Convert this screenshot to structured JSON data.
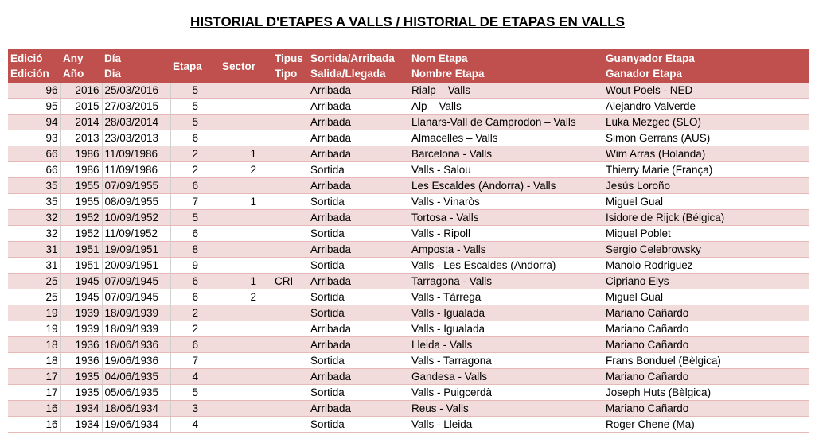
{
  "title": "HISTORIAL D'ETAPES A VALLS / HISTORIAL DE ETAPAS EN VALLS",
  "headers": {
    "edicio": [
      "Edició",
      "Edición"
    ],
    "any": [
      "Any",
      "Año"
    ],
    "dia": [
      "Día",
      "Dia"
    ],
    "etapa": "Etapa",
    "sector": "Sector",
    "tipus": [
      "Tipus",
      "Tipo"
    ],
    "sortida": [
      "Sortida/Arribada",
      "Salida/Llegada"
    ],
    "nom": [
      "Nom Etapa",
      "Nombre Etapa"
    ],
    "guanyador": [
      "Guanyador Etapa",
      "Ganador Etapa"
    ]
  },
  "colors": {
    "header": "#c0504d",
    "band": "#f2dcdb"
  },
  "rows": [
    [
      "96",
      "2016",
      "25/03/2016",
      "5",
      "",
      "",
      "Arribada",
      "Rialp – Valls",
      "Wout Poels - NED"
    ],
    [
      "95",
      "2015",
      "27/03/2015",
      "5",
      "",
      "",
      "Arribada",
      "Alp – Valls",
      "Alejandro Valverde"
    ],
    [
      "94",
      "2014",
      "28/03/2014",
      "5",
      "",
      "",
      "Arribada",
      "Llanars-Vall de Camprodon – Valls",
      "Luka Mezgec (SLO)"
    ],
    [
      "93",
      "2013",
      "23/03/2013",
      "6",
      "",
      "",
      "Arribada",
      "Almacelles – Valls",
      "Simon Gerrans (AUS)"
    ],
    [
      "66",
      "1986",
      "11/09/1986",
      "2",
      "1",
      "",
      "Arribada",
      "Barcelona - Valls",
      "Wim Arras (Holanda)"
    ],
    [
      "66",
      "1986",
      "11/09/1986",
      "2",
      "2",
      "",
      "Sortida",
      "Valls - Salou",
      "Thierry Marie (França)"
    ],
    [
      "35",
      "1955",
      "07/09/1955",
      "6",
      "",
      "",
      "Arribada",
      "Les Escaldes (Andorra) - Valls",
      "Jesús Loroño"
    ],
    [
      "35",
      "1955",
      "08/09/1955",
      "7",
      "1",
      "",
      "Sortida",
      "Valls - Vinaròs",
      "Miguel Gual"
    ],
    [
      "32",
      "1952",
      "10/09/1952",
      "5",
      "",
      "",
      "Arribada",
      "Tortosa - Valls",
      "Isidore de Rijck (Bélgica)"
    ],
    [
      "32",
      "1952",
      "11/09/1952",
      "6",
      "",
      "",
      "Sortida",
      "Valls - Ripoll",
      "Miquel Poblet"
    ],
    [
      "31",
      "1951",
      "19/09/1951",
      "8",
      "",
      "",
      "Arribada",
      "Amposta - Valls",
      "Sergio Celebrowsky"
    ],
    [
      "31",
      "1951",
      "20/09/1951",
      "9",
      "",
      "",
      "Sortida",
      "Valls - Les Escaldes (Andorra)",
      "Manolo Rodriguez"
    ],
    [
      "25",
      "1945",
      "07/09/1945",
      "6",
      "1",
      "CRI",
      "Arribada",
      "Tarragona - Valls",
      "Cipriano Elys"
    ],
    [
      "25",
      "1945",
      "07/09/1945",
      "6",
      "2",
      "",
      "Sortida",
      "Valls - Tàrrega",
      "Miguel Gual"
    ],
    [
      "19",
      "1939",
      "18/09/1939",
      "2",
      "",
      "",
      "Sortida",
      "Valls - Igualada",
      "Mariano Cañardo"
    ],
    [
      "19",
      "1939",
      "18/09/1939",
      "2",
      "",
      "",
      "Arribada",
      "Valls - Igualada",
      "Mariano Cañardo"
    ],
    [
      "18",
      "1936",
      "18/06/1936",
      "6",
      "",
      "",
      "Arribada",
      "Lleida - Valls",
      "Mariano Cañardo"
    ],
    [
      "18",
      "1936",
      "19/06/1936",
      "7",
      "",
      "",
      "Sortida",
      "Valls - Tarragona",
      "Frans Bonduel (Bèlgica)"
    ],
    [
      "17",
      "1935",
      "04/06/1935",
      "4",
      "",
      "",
      "Arribada",
      "Gandesa - Valls",
      "Mariano Cañardo"
    ],
    [
      "17",
      "1935",
      "05/06/1935",
      "5",
      "",
      "",
      "Sortida",
      "Valls - Puigcerdà",
      "Joseph Huts (Bèlgica)"
    ],
    [
      "16",
      "1934",
      "18/06/1934",
      "3",
      "",
      "",
      "Arribada",
      "Reus - Valls",
      "Mariano Cañardo"
    ],
    [
      "16",
      "1934",
      "19/06/1934",
      "4",
      "",
      "",
      "Sortida",
      "Valls - Lleida",
      "Roger Chene (Ma)"
    ]
  ]
}
